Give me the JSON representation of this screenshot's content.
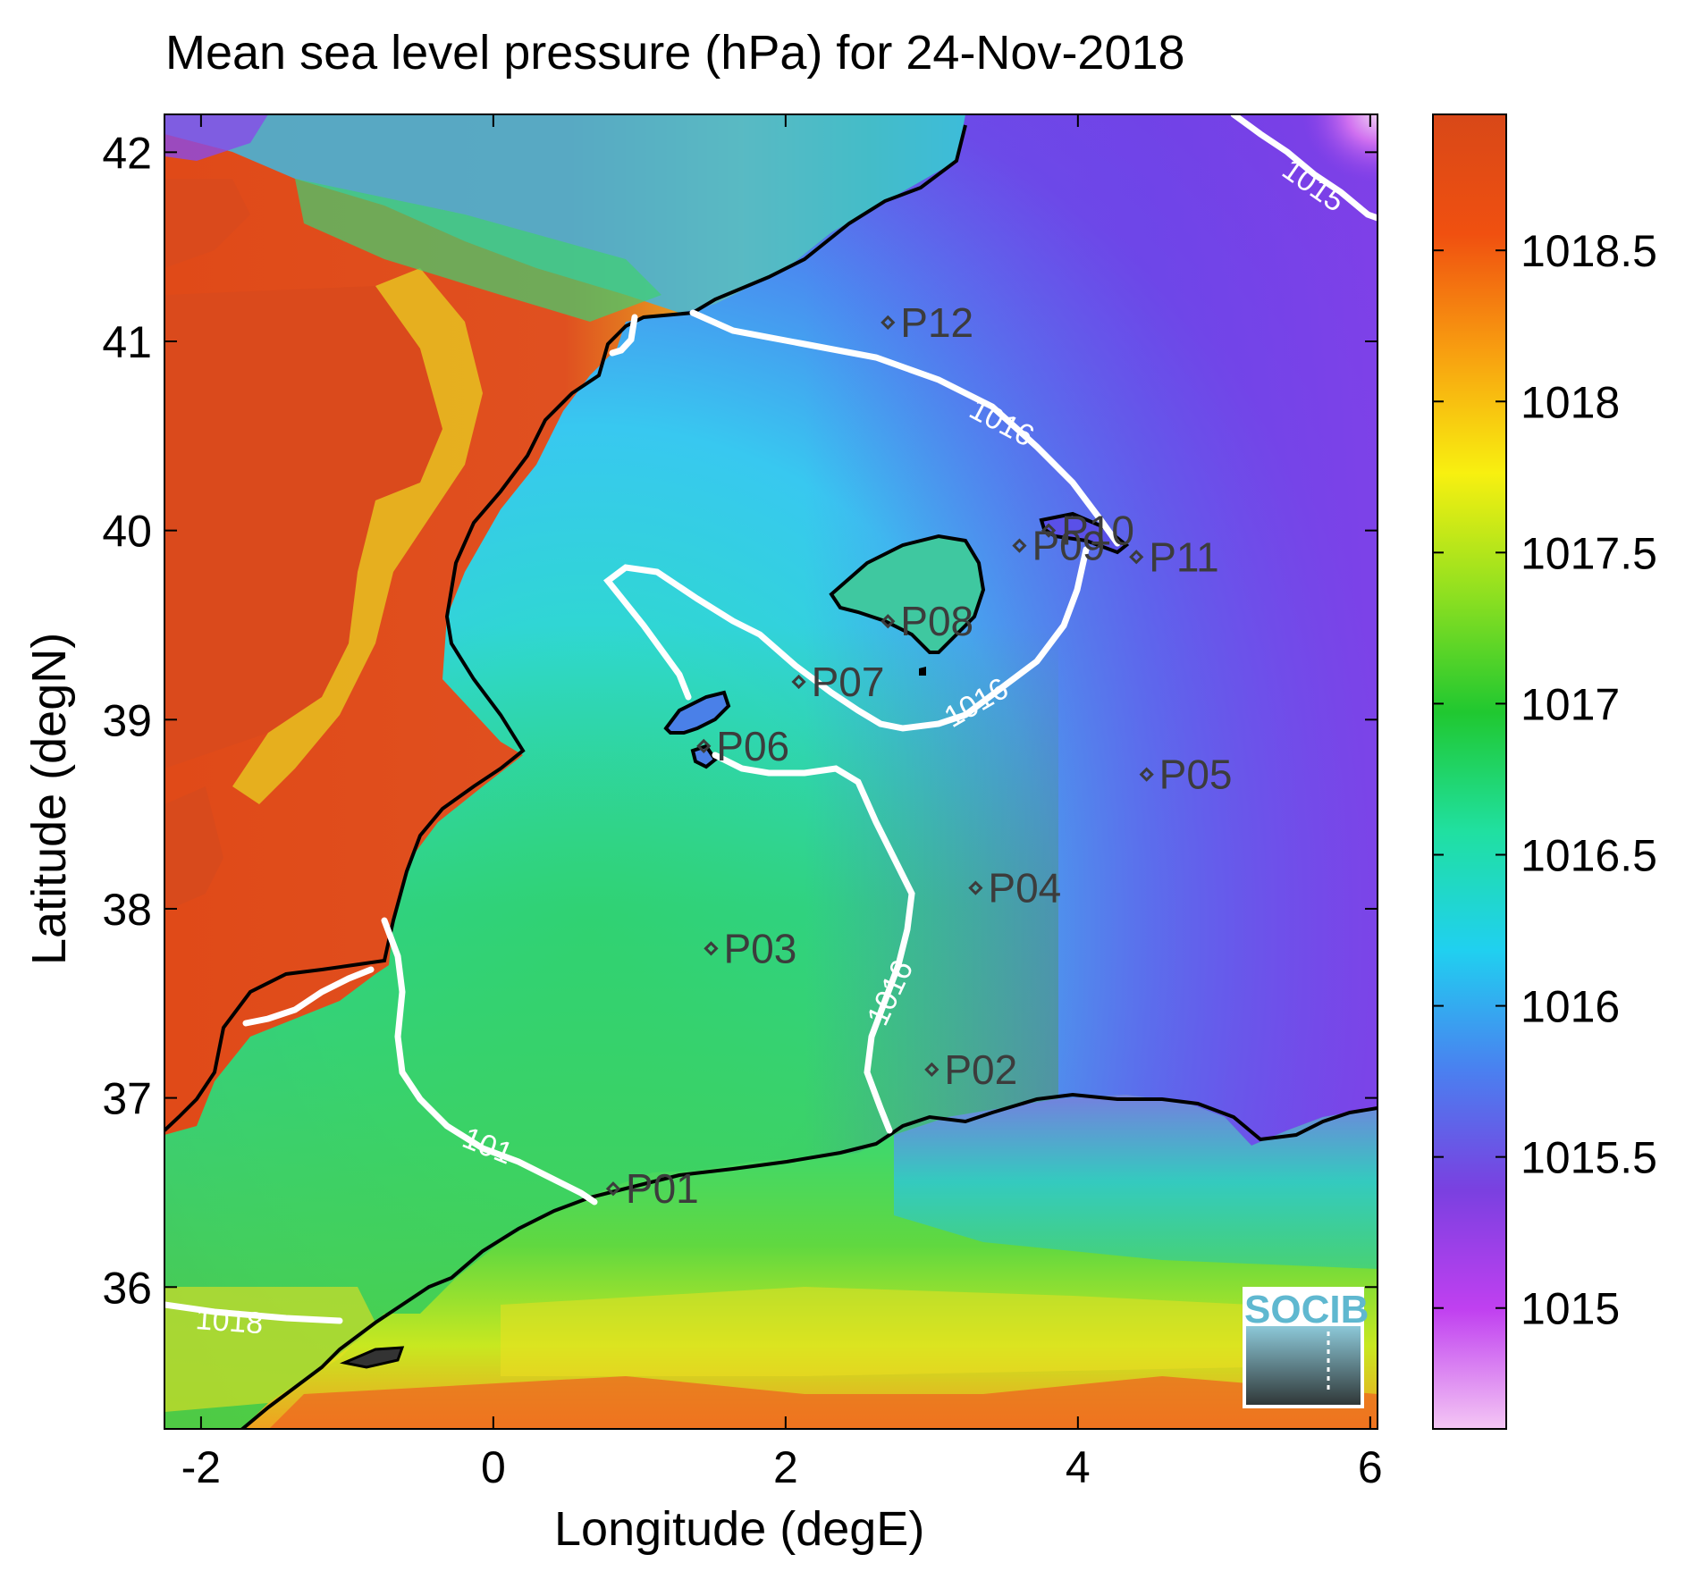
{
  "title": "Mean sea level pressure (hPa) for 24-Nov-2018",
  "xlabel": "Longitude (degE)",
  "ylabel": "Latitude (degN)",
  "x_ticks": [
    "-2",
    "0",
    "2",
    "4",
    "6"
  ],
  "y_ticks": [
    "42",
    "41",
    "40",
    "39",
    "38",
    "37",
    "36"
  ],
  "colorbar": {
    "ticks": [
      "1018.5",
      "1018",
      "1017.5",
      "1017",
      "1016.5",
      "1016",
      "1015.5",
      "1015"
    ],
    "min": 1014.6,
    "max": 1018.95,
    "colormap": [
      "#f4c6f4",
      "#c040f0",
      "#7a40e0",
      "#4a80f0",
      "#20d0f0",
      "#20e0a0",
      "#20c830",
      "#90e020",
      "#f8f010",
      "#f8a010",
      "#f05010",
      "#d84818"
    ]
  },
  "contour_labels": [
    "1015",
    "1016",
    "1016",
    "1016",
    "101",
    "1018"
  ],
  "logo_text": "SOCIB",
  "chart_data": {
    "type": "heatmap",
    "title": "Mean sea level pressure (hPa) for 24-Nov-2018",
    "xlabel": "Longitude (degE)",
    "ylabel": "Latitude (degN)",
    "xlim": [
      -2.25,
      6.05
    ],
    "ylim": [
      35.25,
      42.2
    ],
    "colorbar_range": [
      1014.6,
      1018.95
    ],
    "stations": [
      {
        "name": "P01",
        "lon": 0.82,
        "lat": 36.52
      },
      {
        "name": "P02",
        "lon": 3.0,
        "lat": 37.15
      },
      {
        "name": "P03",
        "lon": 1.49,
        "lat": 37.79
      },
      {
        "name": "P04",
        "lon": 3.3,
        "lat": 38.11
      },
      {
        "name": "P05",
        "lon": 4.47,
        "lat": 38.71
      },
      {
        "name": "P06",
        "lon": 1.44,
        "lat": 38.86
      },
      {
        "name": "P07",
        "lon": 2.09,
        "lat": 39.2
      },
      {
        "name": "P08",
        "lon": 2.7,
        "lat": 39.52
      },
      {
        "name": "P09",
        "lon": 3.6,
        "lat": 39.92
      },
      {
        "name": "P10",
        "lon": 3.8,
        "lat": 40.0
      },
      {
        "name": "P11",
        "lon": 4.4,
        "lat": 39.86
      },
      {
        "name": "P12",
        "lon": 2.7,
        "lat": 41.1
      }
    ],
    "contours": [
      {
        "level": 1015,
        "label": "1015"
      },
      {
        "level": 1016,
        "label": "1016"
      },
      {
        "level": 1018,
        "label": "1018"
      }
    ]
  }
}
